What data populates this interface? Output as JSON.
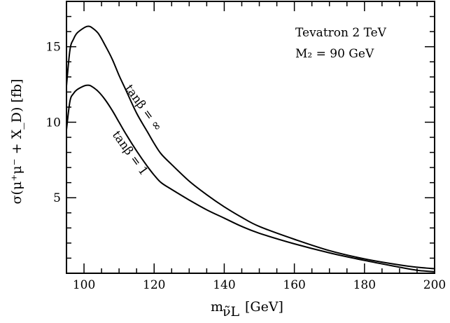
{
  "chart_data": {
    "type": "line",
    "title": "",
    "xlabel": "m",
    "xlabel_sub": "ν̃L",
    "xlabel_unit": "[GeV]",
    "ylabel": "σ(μ⁺μ⁻ + X_D) [fb]",
    "xlim": [
      95,
      200
    ],
    "ylim": [
      0,
      18
    ],
    "x_ticks": [
      100,
      120,
      140,
      160,
      180,
      200
    ],
    "y_ticks": [
      5,
      10,
      15
    ],
    "grid": false,
    "annotations": [
      "Tevatron 2 TeV",
      "M₂ = 90 GeV"
    ],
    "series": [
      {
        "name": "tanβ = ∞",
        "x": [
          95,
          96,
          97,
          98,
          100,
          101,
          102,
          104,
          106,
          108,
          110,
          112,
          115,
          118,
          120,
          122,
          125,
          130,
          135,
          140,
          145,
          150,
          160,
          170,
          180,
          190,
          195,
          200
        ],
        "values": [
          12.4,
          14.8,
          15.5,
          15.9,
          16.25,
          16.35,
          16.3,
          15.9,
          15.1,
          14.2,
          13.1,
          12.1,
          10.6,
          9.4,
          8.6,
          7.9,
          7.2,
          6.1,
          5.2,
          4.4,
          3.7,
          3.1,
          2.25,
          1.5,
          0.95,
          0.55,
          0.4,
          0.3
        ]
      },
      {
        "name": "tanβ = 1",
        "x": [
          95,
          96,
          97,
          98,
          100,
          101,
          102,
          104,
          106,
          108,
          110,
          112,
          115,
          118,
          120,
          122,
          125,
          130,
          135,
          140,
          145,
          150,
          160,
          170,
          180,
          190,
          195,
          200
        ],
        "values": [
          9.5,
          11.4,
          11.9,
          12.15,
          12.4,
          12.45,
          12.4,
          12.05,
          11.5,
          10.8,
          10.0,
          9.2,
          8.1,
          7.1,
          6.5,
          6.0,
          5.55,
          4.85,
          4.2,
          3.65,
          3.1,
          2.65,
          1.95,
          1.35,
          0.85,
          0.4,
          0.2,
          0.1
        ]
      }
    ],
    "series_labels": [
      "tanβ = ∞",
      "tanβ = 1"
    ]
  }
}
